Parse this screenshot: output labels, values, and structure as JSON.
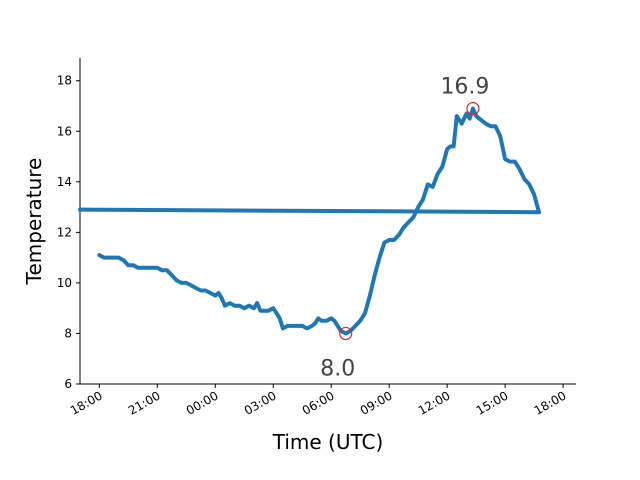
{
  "chart_data": {
    "type": "line",
    "xlabel": "Time (UTC)",
    "ylabel": "Temperature",
    "ylim": [
      6,
      18.9
    ],
    "xlim": [
      "17:00",
      "18:40"
    ],
    "grid": false,
    "x_ticks": [
      "18:00",
      "21:00",
      "00:00",
      "03:00",
      "06:00",
      "09:00",
      "12:00",
      "15:00",
      "18:00"
    ],
    "y_ticks": [
      "6",
      "8",
      "10",
      "12",
      "14",
      "16",
      "18"
    ],
    "colors": {
      "line": "#1f77b4",
      "marker": "#d62728",
      "annotation": "#444444"
    },
    "series": [
      {
        "x": [
          "18:00",
          "18:15",
          "18:30",
          "18:45",
          "19:00",
          "19:15",
          "19:30",
          "19:45",
          "20:00",
          "20:15",
          "20:30",
          "20:45",
          "21:00",
          "21:15",
          "21:30",
          "21:45",
          "22:00",
          "22:15",
          "22:30",
          "22:45",
          "23:00",
          "23:15",
          "23:30",
          "23:45",
          "00:00",
          "00:10",
          "00:20",
          "00:30",
          "00:45",
          "01:00",
          "01:15",
          "01:30",
          "01:45",
          "02:00",
          "02:10",
          "02:20",
          "02:30",
          "02:45",
          "03:00",
          "03:10",
          "03:20",
          "03:30",
          "03:45",
          "04:00",
          "04:15",
          "04:30",
          "04:45",
          "05:00",
          "05:10",
          "05:20",
          "05:30",
          "05:45",
          "06:00",
          "06:10",
          "06:20",
          "06:30",
          "06:45",
          "07:00",
          "07:15",
          "07:30",
          "07:45",
          "08:00",
          "08:15",
          "08:30",
          "08:45",
          "09:00",
          "09:15",
          "09:30",
          "09:45",
          "10:00",
          "10:15",
          "10:30",
          "10:45",
          "11:00",
          "11:15",
          "11:30",
          "11:45",
          "12:00",
          "12:10",
          "12:20",
          "12:30",
          "12:45",
          "13:00",
          "13:10",
          "13:20",
          "13:30",
          "13:40",
          "13:50",
          "14:00",
          "14:15",
          "14:30",
          "14:45",
          "15:00",
          "15:15",
          "15:30",
          "15:45",
          "16:00",
          "16:15",
          "16:30",
          "16:45",
          "17:00",
          "17:15",
          "17:30"
        ],
        "values": [
          11.1,
          11.0,
          11.0,
          11.0,
          11.0,
          10.9,
          10.7,
          10.7,
          10.6,
          10.6,
          10.6,
          10.6,
          10.6,
          10.5,
          10.5,
          10.3,
          10.1,
          10.0,
          10.0,
          9.9,
          9.8,
          9.7,
          9.7,
          9.6,
          9.5,
          9.6,
          9.4,
          9.1,
          9.2,
          9.1,
          9.1,
          9.0,
          9.1,
          9.0,
          9.2,
          8.9,
          8.9,
          8.9,
          9.0,
          8.8,
          8.6,
          8.2,
          8.3,
          8.3,
          8.3,
          8.3,
          8.2,
          8.3,
          8.4,
          8.6,
          8.5,
          8.5,
          8.6,
          8.5,
          8.3,
          8.1,
          8.0,
          8.1,
          8.3,
          8.5,
          8.8,
          9.5,
          10.3,
          11.0,
          11.6,
          11.7,
          11.7,
          11.9,
          12.2,
          12.4,
          12.6,
          13.0,
          13.3,
          13.9,
          13.8,
          14.3,
          14.6,
          15.3,
          15.4,
          15.4,
          16.6,
          16.3,
          16.7,
          16.5,
          16.9,
          16.6,
          16.5,
          16.4,
          16.3,
          16.2,
          16.2,
          15.8,
          14.9,
          14.8,
          14.8,
          14.5,
          14.1,
          13.9,
          13.5,
          12.8,
          12.9,
          12.9,
          12.9
        ],
        "line_width": 4
      }
    ],
    "annotations": [
      {
        "text": "8.0",
        "x": "06:45",
        "y": 8.0
      },
      {
        "text": "16.9",
        "x": "13:20",
        "y": 16.9
      }
    ]
  }
}
